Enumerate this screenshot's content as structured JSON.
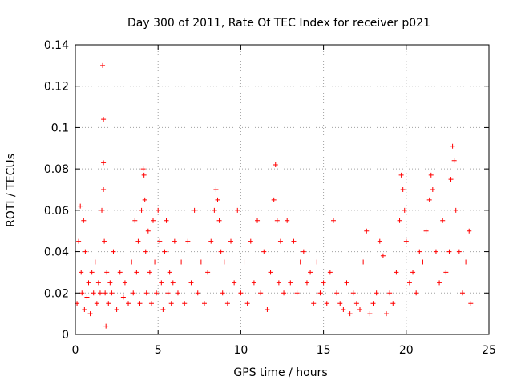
{
  "chart_data": {
    "type": "scatter",
    "title": "Day 300 of 2011, Rate Of TEC Index for receiver p021",
    "xlabel": "GPS time / hours",
    "ylabel": "ROTI / TECUs",
    "xlim": [
      0,
      25
    ],
    "ylim": [
      0,
      0.14
    ],
    "xticks": [
      "0",
      "5",
      "10",
      "15",
      "20",
      "25"
    ],
    "yticks": [
      "0",
      "0.02",
      "0.04",
      "0.06",
      "0.08",
      "0.1",
      "0.12",
      "0.14"
    ],
    "grid": true,
    "marker": "plus",
    "color": "#ff0000",
    "series": [
      {
        "x": [
          0.1,
          0.2,
          0.3,
          0.35,
          0.4,
          0.5,
          0.55,
          0.6,
          0.7,
          0.8,
          0.9,
          1.0,
          1.1,
          1.2,
          1.3,
          1.4,
          1.5,
          1.6,
          1.65,
          1.7,
          1.7,
          1.7,
          1.75,
          1.8,
          1.85,
          1.9,
          2.0,
          2.1,
          2.2,
          2.3,
          2.5,
          2.7,
          2.9,
          3.0,
          3.2,
          3.4,
          3.5,
          3.6,
          3.7,
          3.8,
          3.9,
          4.0,
          4.1,
          4.15,
          4.2,
          4.25,
          4.3,
          4.4,
          4.5,
          4.6,
          4.7,
          4.8,
          4.9,
          5.0,
          5.1,
          5.2,
          5.3,
          5.4,
          5.5,
          5.6,
          5.7,
          5.8,
          5.9,
          6.0,
          6.2,
          6.4,
          6.6,
          6.8,
          7.0,
          7.2,
          7.4,
          7.6,
          7.8,
          8.0,
          8.2,
          8.4,
          8.5,
          8.6,
          8.7,
          8.8,
          8.9,
          9.0,
          9.2,
          9.4,
          9.6,
          9.8,
          10.0,
          10.2,
          10.4,
          10.6,
          10.8,
          11.0,
          11.2,
          11.4,
          11.6,
          11.8,
          12.0,
          12.1,
          12.2,
          12.3,
          12.4,
          12.6,
          12.8,
          13.0,
          13.2,
          13.4,
          13.6,
          13.8,
          14.0,
          14.2,
          14.4,
          14.6,
          14.8,
          15.0,
          15.2,
          15.4,
          15.6,
          15.8,
          16.0,
          16.2,
          16.4,
          16.6,
          16.8,
          17.0,
          17.2,
          17.4,
          17.6,
          17.8,
          18.0,
          18.2,
          18.4,
          18.6,
          18.8,
          19.0,
          19.2,
          19.4,
          19.6,
          19.7,
          19.8,
          19.9,
          20.0,
          20.2,
          20.4,
          20.6,
          20.8,
          21.0,
          21.2,
          21.4,
          21.5,
          21.6,
          21.8,
          22.0,
          22.2,
          22.4,
          22.6,
          22.7,
          22.8,
          22.9,
          23.0,
          23.2,
          23.4,
          23.6,
          23.8,
          23.9
        ],
        "y": [
          0.015,
          0.045,
          0.062,
          0.03,
          0.02,
          0.055,
          0.012,
          0.04,
          0.018,
          0.025,
          0.01,
          0.03,
          0.02,
          0.035,
          0.015,
          0.025,
          0.02,
          0.06,
          0.13,
          0.104,
          0.083,
          0.07,
          0.045,
          0.02,
          0.004,
          0.03,
          0.015,
          0.025,
          0.02,
          0.04,
          0.012,
          0.03,
          0.018,
          0.025,
          0.015,
          0.035,
          0.02,
          0.055,
          0.03,
          0.045,
          0.015,
          0.06,
          0.08,
          0.077,
          0.065,
          0.04,
          0.02,
          0.05,
          0.03,
          0.015,
          0.055,
          0.035,
          0.02,
          0.06,
          0.045,
          0.025,
          0.012,
          0.04,
          0.055,
          0.02,
          0.03,
          0.015,
          0.025,
          0.045,
          0.02,
          0.035,
          0.015,
          0.045,
          0.025,
          0.06,
          0.02,
          0.035,
          0.015,
          0.03,
          0.045,
          0.06,
          0.07,
          0.065,
          0.055,
          0.04,
          0.02,
          0.035,
          0.015,
          0.045,
          0.025,
          0.06,
          0.02,
          0.035,
          0.015,
          0.045,
          0.025,
          0.055,
          0.02,
          0.04,
          0.012,
          0.03,
          0.065,
          0.082,
          0.055,
          0.025,
          0.045,
          0.02,
          0.055,
          0.025,
          0.045,
          0.02,
          0.035,
          0.04,
          0.025,
          0.03,
          0.015,
          0.035,
          0.02,
          0.025,
          0.015,
          0.03,
          0.055,
          0.02,
          0.015,
          0.012,
          0.025,
          0.01,
          0.02,
          0.015,
          0.012,
          0.035,
          0.05,
          0.01,
          0.015,
          0.02,
          0.045,
          0.038,
          0.01,
          0.02,
          0.015,
          0.03,
          0.055,
          0.077,
          0.07,
          0.06,
          0.045,
          0.025,
          0.03,
          0.02,
          0.04,
          0.035,
          0.05,
          0.065,
          0.077,
          0.07,
          0.04,
          0.025,
          0.055,
          0.03,
          0.04,
          0.075,
          0.091,
          0.084,
          0.06,
          0.04,
          0.02,
          0.035,
          0.05,
          0.015
        ]
      }
    ]
  }
}
